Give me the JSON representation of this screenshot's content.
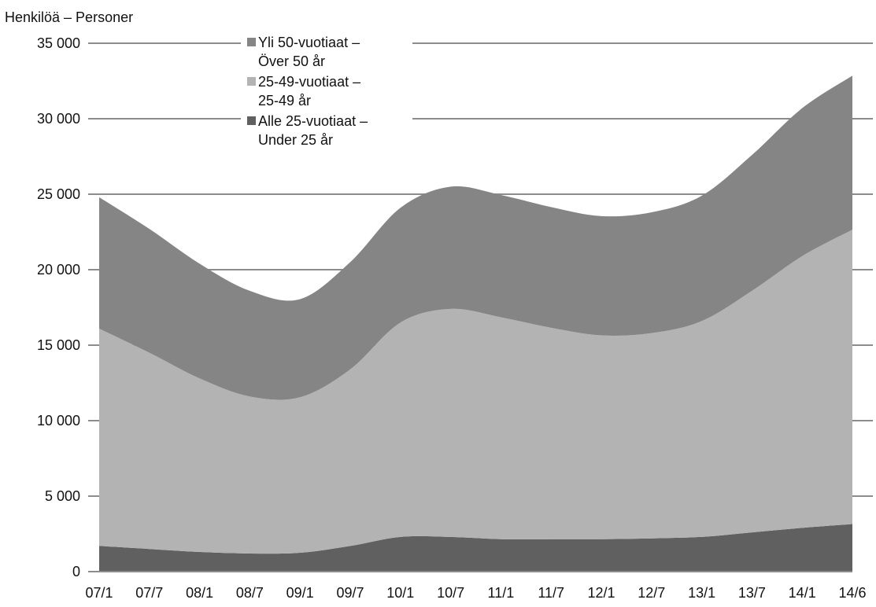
{
  "chart_data": {
    "type": "area",
    "stacked": true,
    "ylabel": "Henkilöä – Personer",
    "ylim": [
      0,
      35000
    ],
    "yticks": [
      {
        "value": 0,
        "label": "0"
      },
      {
        "value": 5000,
        "label": "5 000"
      },
      {
        "value": 10000,
        "label": "10 000"
      },
      {
        "value": 15000,
        "label": "15 000"
      },
      {
        "value": 20000,
        "label": "20 000"
      },
      {
        "value": 25000,
        "label": "25 000"
      },
      {
        "value": 30000,
        "label": "30 000"
      },
      {
        "value": 35000,
        "label": "35 000"
      }
    ],
    "x_tick_labels": [
      "07/1",
      "07/7",
      "08/1",
      "08/7",
      "09/1",
      "09/7",
      "10/1",
      "10/7",
      "11/1",
      "11/7",
      "12/1",
      "12/7",
      "13/1",
      "13/7",
      "14/1",
      "14/6"
    ],
    "grid": "horizontal",
    "legend_position": "top-left-inside",
    "series": [
      {
        "name_lines": [
          "Alle 25-vuotiaat –",
          "Under 25 år"
        ],
        "color": "#606060",
        "values": [
          1700,
          1500,
          1300,
          1200,
          1250,
          1700,
          2300,
          2300,
          2150,
          2150,
          2150,
          2200,
          2300,
          2600,
          2900,
          3150
        ]
      },
      {
        "name_lines": [
          "25-49-vuotiaat –",
          "25-49 år"
        ],
        "color": "#b3b3b3",
        "values": [
          14400,
          13000,
          11500,
          10400,
          10300,
          11700,
          14200,
          15100,
          14700,
          14000,
          13500,
          13600,
          14300,
          16000,
          18000,
          19500
        ]
      },
      {
        "name_lines": [
          "Yli 50-vuotiaat –",
          "Över 50 år"
        ],
        "color": "#858585",
        "values": [
          8700,
          8200,
          7600,
          7000,
          6500,
          7100,
          7600,
          8100,
          8100,
          8000,
          7900,
          8000,
          8300,
          9000,
          9800,
          10200
        ]
      }
    ],
    "legend_order": [
      2,
      1,
      0
    ]
  }
}
